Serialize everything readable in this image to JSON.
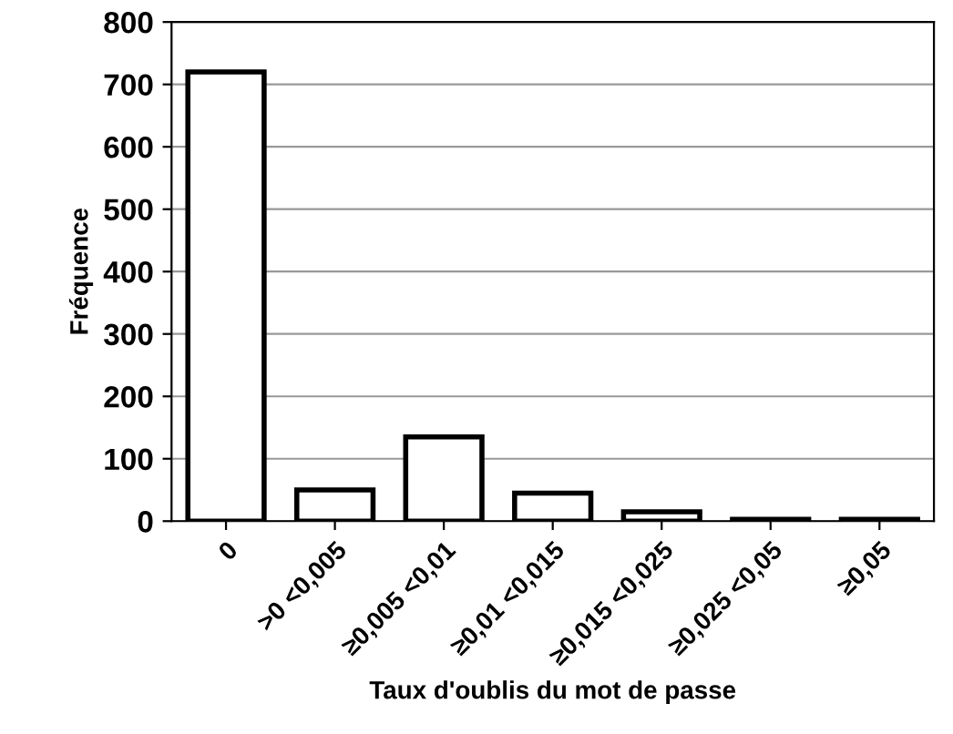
{
  "chart_data": {
    "type": "bar",
    "xlabel": "Taux d'oublis du mot de passe",
    "ylabel": "Fréquence",
    "categories": [
      "0",
      ">0 <0,005",
      "≥0,005 <0,01",
      "≥0,01 <0,015",
      "≥0,015 <0,025",
      "≥0,025 <0,05",
      "≥0,05"
    ],
    "values": [
      720,
      50,
      135,
      45,
      15,
      3,
      3
    ],
    "color": "#ffffff",
    "ylim": [
      0,
      800
    ],
    "yticks": [
      0,
      100,
      200,
      300,
      400,
      500,
      600,
      700,
      800
    ],
    "grid": "y"
  }
}
